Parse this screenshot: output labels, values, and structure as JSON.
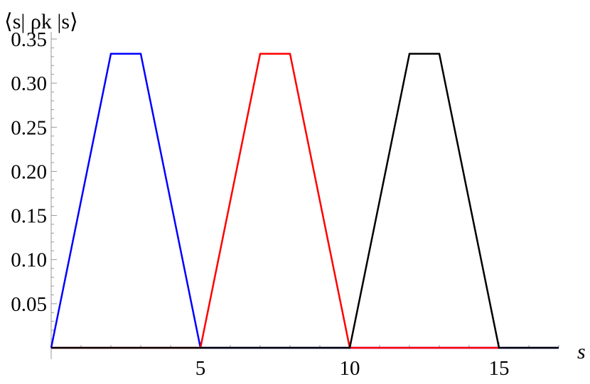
{
  "chart_data": {
    "type": "line",
    "title": "",
    "xlabel": "s",
    "ylabel": "⟨s| ρk |s⟩",
    "xlim": [
      0,
      17
    ],
    "ylim": [
      0,
      0.35
    ],
    "grid": false,
    "xticks": [
      5,
      10,
      15
    ],
    "xtick_labels": [
      "5",
      "10",
      "15"
    ],
    "yticks": [
      0.05,
      0.1,
      0.15,
      0.2,
      0.25,
      0.3,
      0.35
    ],
    "ytick_labels": [
      "0.05",
      "0.10",
      "0.15",
      "0.20",
      "0.25",
      "0.30",
      "0.35"
    ],
    "series": [
      {
        "color": "#0000ff",
        "x": [
          0,
          2,
          3,
          5,
          17
        ],
        "y": [
          0,
          0.3333,
          0.3333,
          0,
          0
        ]
      },
      {
        "color": "#ff0000",
        "x": [
          0,
          5,
          7,
          8,
          10,
          15
        ],
        "y": [
          0,
          0,
          0.3333,
          0.3333,
          0,
          0
        ]
      },
      {
        "color": "#000000",
        "x": [
          0,
          10,
          12,
          13,
          15,
          17
        ],
        "y": [
          0,
          0,
          0.3333,
          0.3333,
          0,
          0
        ]
      }
    ]
  }
}
